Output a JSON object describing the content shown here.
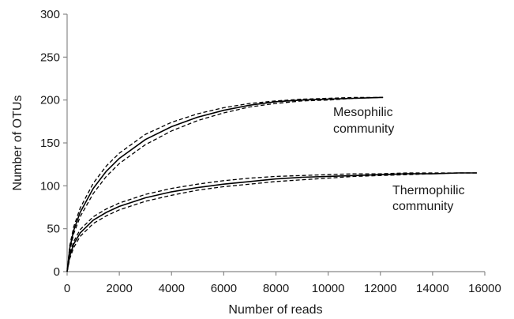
{
  "chart_data": {
    "type": "line",
    "xlabel": "Number of reads",
    "ylabel": "Number of OTUs",
    "xlim": [
      0,
      16000
    ],
    "ylim": [
      0,
      300
    ],
    "xticks": [
      0,
      2000,
      4000,
      6000,
      8000,
      10000,
      12000,
      14000,
      16000
    ],
    "yticks": [
      0,
      50,
      100,
      150,
      200,
      250,
      300
    ],
    "grid": false,
    "legend": "none",
    "series": [
      {
        "style": "solid",
        "color": "#000000",
        "x": [
          0,
          100,
          250,
          500,
          1000,
          1500,
          2000,
          3000,
          4000,
          5000,
          6000,
          7000,
          8000,
          9000,
          10000,
          11000,
          12000,
          12100
        ],
        "y": [
          0,
          27,
          48,
          69,
          97,
          117,
          132,
          154,
          169,
          180,
          188,
          194,
          198,
          200,
          201,
          202,
          203,
          203
        ]
      },
      {
        "style": "dashed",
        "color": "#000000",
        "x": [
          0,
          100,
          250,
          500,
          1000,
          1500,
          2000,
          3000,
          4000,
          5000,
          6000,
          7000,
          8000,
          9000,
          10000,
          11000,
          12000,
          12100
        ],
        "y": [
          0,
          30,
          52,
          74,
          103,
          123,
          138,
          160,
          174,
          184,
          191,
          196,
          199,
          201,
          202,
          203,
          203,
          203
        ]
      },
      {
        "style": "dashed",
        "color": "#000000",
        "x": [
          0,
          100,
          250,
          500,
          1000,
          1500,
          2000,
          3000,
          4000,
          5000,
          6000,
          7000,
          8000,
          9000,
          10000,
          11000,
          12000,
          12100
        ],
        "y": [
          0,
          24,
          44,
          64,
          91,
          111,
          126,
          148,
          164,
          176,
          185,
          192,
          196,
          199,
          200,
          202,
          203,
          203
        ]
      },
      {
        "style": "solid",
        "color": "#000000",
        "x": [
          0,
          100,
          250,
          500,
          1000,
          1500,
          2000,
          3000,
          4000,
          5000,
          6000,
          7000,
          8000,
          9000,
          10000,
          11000,
          12000,
          13000,
          14000,
          15000,
          15700
        ],
        "y": [
          0,
          18,
          32,
          45,
          60,
          69,
          76,
          86,
          93,
          98,
          102,
          105,
          108,
          110,
          111,
          112,
          113,
          114,
          114,
          115,
          115
        ]
      },
      {
        "style": "dashed",
        "color": "#000000",
        "x": [
          0,
          100,
          250,
          500,
          1000,
          1500,
          2000,
          3000,
          4000,
          5000,
          6000,
          7000,
          8000,
          9000,
          10000,
          11000,
          12000,
          13000,
          14000,
          15000,
          15700
        ],
        "y": [
          0,
          21,
          35,
          49,
          64,
          73,
          80,
          90,
          97,
          102,
          106,
          109,
          111,
          112,
          113,
          114,
          114,
          115,
          115,
          115,
          115
        ]
      },
      {
        "style": "dashed",
        "color": "#000000",
        "x": [
          0,
          100,
          250,
          500,
          1000,
          1500,
          2000,
          3000,
          4000,
          5000,
          6000,
          7000,
          8000,
          9000,
          10000,
          11000,
          12000,
          13000,
          14000,
          15000,
          15700
        ],
        "y": [
          0,
          15,
          28,
          41,
          56,
          65,
          72,
          82,
          89,
          95,
          99,
          102,
          105,
          107,
          109,
          111,
          112,
          113,
          114,
          115,
          115
        ]
      }
    ],
    "annotations": [
      {
        "lines": [
          "Mesophilic",
          "community"
        ]
      },
      {
        "lines": [
          "Thermophilic",
          "community"
        ]
      }
    ]
  }
}
